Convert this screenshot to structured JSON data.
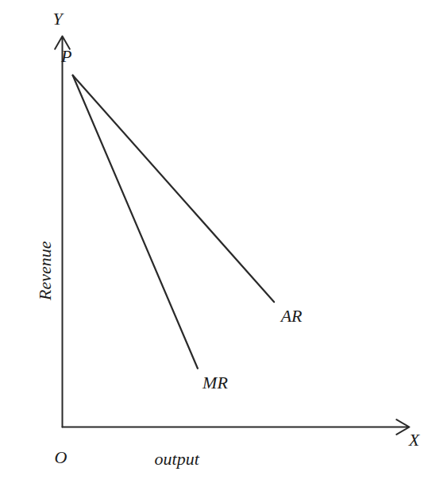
{
  "chart_data": {
    "type": "line",
    "x_label": "output",
    "y_label": "Revenue",
    "xlim": [
      0,
      10
    ],
    "ylim": [
      0,
      10
    ],
    "xticks": [],
    "yticks": [],
    "tick_labels": false,
    "grid": false,
    "series": [
      {
        "name": "AR",
        "color": "#2a2a2a",
        "x": [
          0.3,
          6.1
        ],
        "values": [
          9,
          3.2
        ]
      },
      {
        "name": "MR",
        "color": "#2a2a2a",
        "x": [
          0.3,
          3.9
        ],
        "values": [
          9,
          1.5
        ]
      }
    ],
    "annotations": [
      {
        "text": "P",
        "x": 0.3,
        "y": 9
      },
      {
        "text": "O",
        "x": 0,
        "y": 0
      },
      {
        "text": "Y",
        "x": 0,
        "y": 10
      },
      {
        "text": "X",
        "x": 10,
        "y": 0
      }
    ]
  }
}
